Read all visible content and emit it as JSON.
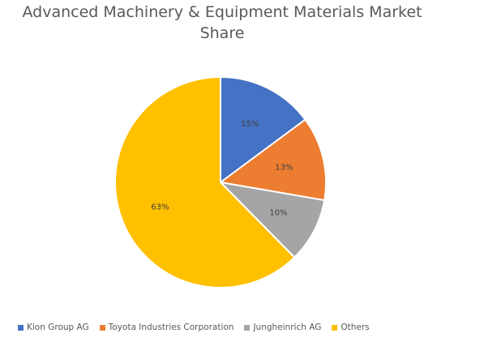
{
  "chart_data": {
    "type": "pie",
    "title_lines": [
      "Advanced Machinery & Equipment Materials Market",
      "Share"
    ],
    "categories": [
      "Kion Group AG",
      "Toyota Industries Corporation",
      "Jungheinrich AG",
      "Others"
    ],
    "values": [
      15,
      13,
      10,
      63
    ],
    "value_labels": [
      "15%",
      "13%",
      "10%",
      "63%"
    ],
    "colors": [
      "#4472C4",
      "#ED7D31",
      "#A5A5A5",
      "#FFC000"
    ],
    "legend_position": "bottom",
    "start_angle": "12 o'clock",
    "direction": "clockwise"
  }
}
